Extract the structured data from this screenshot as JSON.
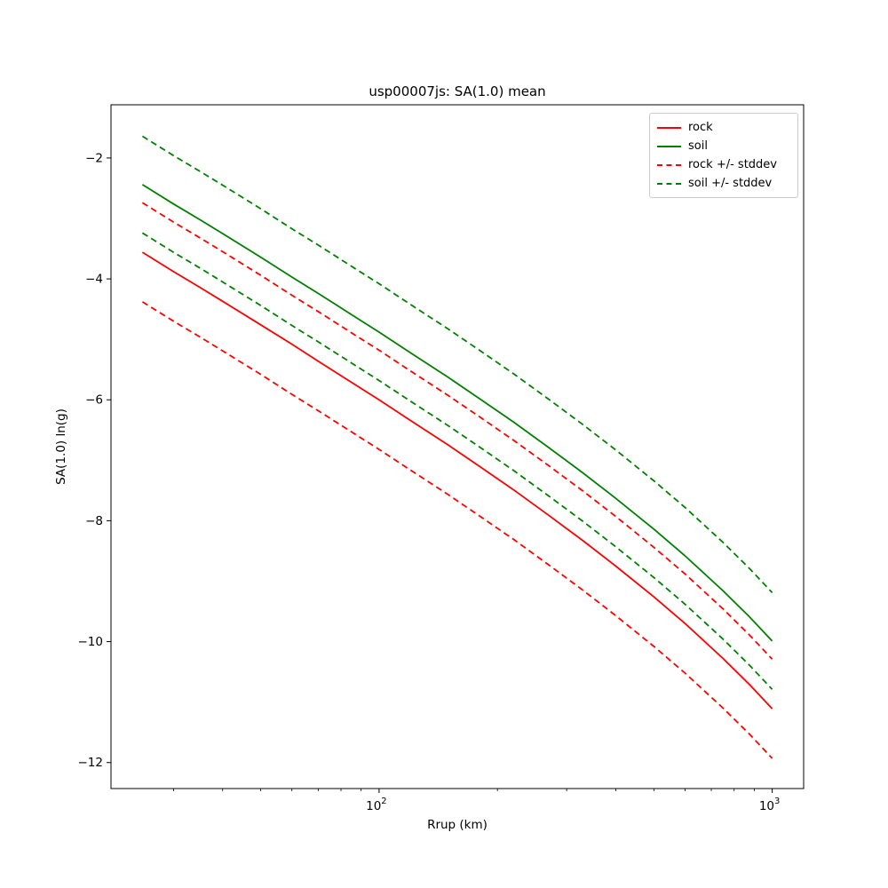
{
  "title": "usp00007js: SA(1.0) mean",
  "axes": {
    "xlabel": "Rrup (km)",
    "ylabel": "SA(1.0) ln(g)"
  },
  "legend": {
    "position": "upper right",
    "items": [
      {
        "label": "rock",
        "color": "#ff0000",
        "dash": "solid"
      },
      {
        "label": "soil",
        "color": "#008000",
        "dash": "solid"
      },
      {
        "label": "rock +/- stddev",
        "color": "#ff0000",
        "dash": "dashed"
      },
      {
        "label": "soil +/- stddev",
        "color": "#008000",
        "dash": "dashed"
      }
    ]
  },
  "chart_data": {
    "type": "line",
    "title": "usp00007js: SA(1.0) mean",
    "xlabel": "Rrup (km)",
    "ylabel": "SA(1.0) ln(g)",
    "x_scale": "log",
    "grid": false,
    "xlim": [
      20.8,
      1202
    ],
    "ylim": [
      -12.43,
      -1.12
    ],
    "yticks": [
      -2,
      -4,
      -6,
      -8,
      -10,
      -12
    ],
    "xticks": [
      {
        "value": 100,
        "base": "10",
        "exp": "2"
      },
      {
        "value": 1000,
        "base": "10",
        "exp": "3"
      }
    ],
    "x_minor_ticks": [
      30,
      40,
      50,
      60,
      70,
      80,
      90,
      200,
      300,
      400,
      500,
      600,
      700,
      800,
      900
    ],
    "x": [
      25,
      30,
      35,
      40,
      50,
      60,
      70,
      85,
      100,
      120,
      150,
      180,
      220,
      270,
      330,
      400,
      500,
      600,
      750,
      875,
      1000
    ],
    "series": [
      {
        "name": "rock",
        "color": "#ff0000",
        "style": "solid",
        "values": [
          -3.56,
          -3.88,
          -4.14,
          -4.37,
          -4.76,
          -5.08,
          -5.36,
          -5.71,
          -6.0,
          -6.34,
          -6.75,
          -7.1,
          -7.49,
          -7.91,
          -8.33,
          -8.75,
          -9.26,
          -9.7,
          -10.28,
          -10.71,
          -11.11
        ]
      },
      {
        "name": "soil",
        "color": "#008000",
        "style": "solid",
        "values": [
          -2.44,
          -2.76,
          -3.02,
          -3.25,
          -3.64,
          -3.97,
          -4.24,
          -4.59,
          -4.88,
          -5.22,
          -5.63,
          -5.98,
          -6.37,
          -6.79,
          -7.21,
          -7.63,
          -8.14,
          -8.58,
          -9.16,
          -9.59,
          -9.99
        ]
      },
      {
        "name": "rock plus stddev",
        "color": "#ff0000",
        "style": "dashed",
        "values": [
          -2.74,
          -3.06,
          -3.32,
          -3.55,
          -3.94,
          -4.27,
          -4.54,
          -4.89,
          -5.18,
          -5.52,
          -5.93,
          -6.28,
          -6.67,
          -7.09,
          -7.51,
          -7.93,
          -8.44,
          -8.88,
          -9.46,
          -9.89,
          -10.29
        ]
      },
      {
        "name": "rock minus stddev",
        "color": "#ff0000",
        "style": "dashed",
        "values": [
          -4.38,
          -4.7,
          -4.96,
          -5.19,
          -5.58,
          -5.91,
          -6.18,
          -6.53,
          -6.82,
          -7.16,
          -7.57,
          -7.92,
          -8.31,
          -8.73,
          -9.15,
          -9.57,
          -10.08,
          -10.52,
          -11.1,
          -11.53,
          -11.93
        ]
      },
      {
        "name": "soil plus stddev",
        "color": "#008000",
        "style": "dashed",
        "values": [
          -1.64,
          -1.96,
          -2.22,
          -2.45,
          -2.84,
          -3.17,
          -3.44,
          -3.79,
          -4.08,
          -4.42,
          -4.83,
          -5.18,
          -5.57,
          -5.99,
          -6.41,
          -6.83,
          -7.34,
          -7.78,
          -8.36,
          -8.79,
          -9.19
        ]
      },
      {
        "name": "soil minus stddev",
        "color": "#008000",
        "style": "dashed",
        "values": [
          -3.24,
          -3.56,
          -3.82,
          -4.05,
          -4.44,
          -4.77,
          -5.04,
          -5.39,
          -5.68,
          -6.02,
          -6.43,
          -6.78,
          -7.17,
          -7.59,
          -8.01,
          -8.43,
          -8.94,
          -9.38,
          -9.96,
          -10.39,
          -10.79
        ]
      }
    ]
  }
}
